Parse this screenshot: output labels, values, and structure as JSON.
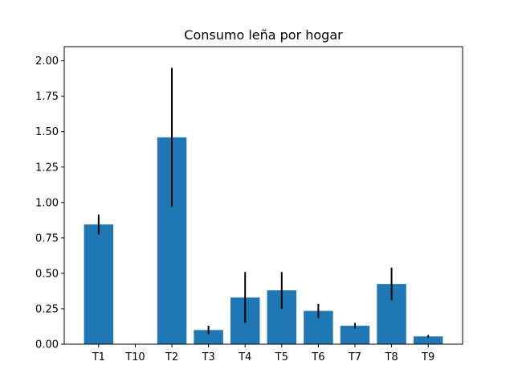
{
  "chart_data": {
    "type": "bar",
    "title": "Consumo leña por hogar",
    "xlabel": "",
    "ylabel": "",
    "categories": [
      "T1",
      "T10",
      "T2",
      "T3",
      "T4",
      "T5",
      "T6",
      "T7",
      "T8",
      "T9"
    ],
    "values": [
      0.845,
      0.0,
      1.46,
      0.1,
      0.33,
      0.38,
      0.235,
      0.13,
      0.425,
      0.055
    ],
    "errors": [
      0.07,
      0.0,
      0.49,
      0.03,
      0.18,
      0.13,
      0.05,
      0.02,
      0.115,
      0.01
    ],
    "ylim": [
      0,
      2.1
    ],
    "yticks": [
      "0.00",
      "0.25",
      "0.50",
      "0.75",
      "1.00",
      "1.25",
      "1.50",
      "1.75",
      "2.00"
    ],
    "grid": false,
    "bar_color": "#1f77b4",
    "error_color": "#000000"
  }
}
